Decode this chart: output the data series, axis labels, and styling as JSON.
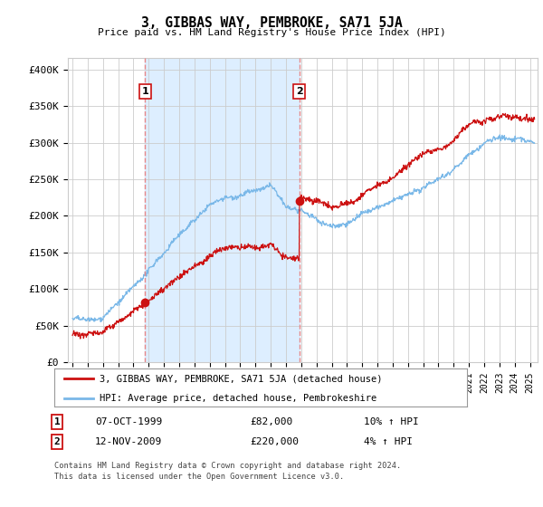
{
  "title": "3, GIBBAS WAY, PEMBROKE, SA71 5JA",
  "subtitle": "Price paid vs. HM Land Registry's House Price Index (HPI)",
  "ylabel_ticks": [
    "£0",
    "£50K",
    "£100K",
    "£150K",
    "£200K",
    "£250K",
    "£300K",
    "£350K",
    "£400K"
  ],
  "ytick_values": [
    0,
    50000,
    100000,
    150000,
    200000,
    250000,
    300000,
    350000,
    400000
  ],
  "ylim": [
    0,
    415000
  ],
  "xlim_start": 1994.7,
  "xlim_end": 2025.5,
  "hpi_color": "#7ab8e8",
  "price_color": "#cc1111",
  "grid_color": "#cccccc",
  "background_color": "#ffffff",
  "shade_color": "#ddeeff",
  "sale1_x": 1999.77,
  "sale1_y": 82000,
  "sale1_label": "1",
  "sale1_date": "07-OCT-1999",
  "sale1_price": "£82,000",
  "sale1_hpi": "10% ↑ HPI",
  "sale2_x": 2009.87,
  "sale2_y": 220000,
  "sale2_label": "2",
  "sale2_date": "12-NOV-2009",
  "sale2_price": "£220,000",
  "sale2_hpi": "4% ↑ HPI",
  "vline_color": "#e88888",
  "legend_line1": "3, GIBBAS WAY, PEMBROKE, SA71 5JA (detached house)",
  "legend_line2": "HPI: Average price, detached house, Pembrokeshire",
  "footer1": "Contains HM Land Registry data © Crown copyright and database right 2024.",
  "footer2": "This data is licensed under the Open Government Licence v3.0."
}
